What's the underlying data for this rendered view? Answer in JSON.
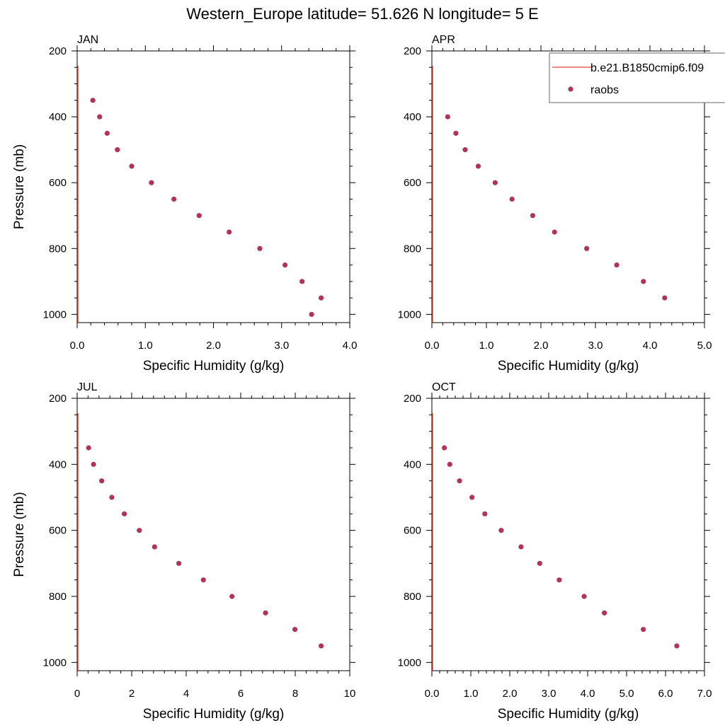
{
  "title": "Western_Europe  latitude= 51.626 N longitude= 5 E",
  "colors": {
    "model_line": "#e8433a",
    "obs_marker": "#b0335a",
    "axis": "#000000"
  },
  "legend": {
    "placement": "top-right",
    "entries": [
      {
        "label": "b.e21.B1850cmip6.f09",
        "style": "line"
      },
      {
        "label": "raobs",
        "style": "marker"
      }
    ]
  },
  "chart_data": [
    {
      "type": "scatter",
      "panel": "JAN",
      "xlabel": "Specific Humidity (g/kg)",
      "ylabel": "Pressure (mb)",
      "xlim": [
        0,
        4.0
      ],
      "ylim": [
        1025,
        200
      ],
      "xticks": [
        "0.0",
        "1.0",
        "2.0",
        "3.0",
        "4.0"
      ],
      "xtick_values": [
        0,
        1,
        2,
        3,
        4
      ],
      "yticks": [
        "200",
        "400",
        "600",
        "800",
        "1000"
      ],
      "ytick_values": [
        200,
        400,
        600,
        800,
        1000
      ],
      "model_line_x": 0.0,
      "series": [
        {
          "name": "raobs",
          "x": [
            0.23,
            0.33,
            0.44,
            0.59,
            0.8,
            1.09,
            1.42,
            1.79,
            2.23,
            2.68,
            3.05,
            3.3,
            3.58,
            3.44
          ],
          "y": [
            350,
            400,
            450,
            500,
            550,
            600,
            650,
            700,
            750,
            800,
            850,
            900,
            950,
            1000
          ]
        }
      ]
    },
    {
      "type": "scatter",
      "panel": "APR",
      "xlabel": "Specific Humidity (g/kg)",
      "ylabel": "",
      "xlim": [
        0,
        5.0
      ],
      "ylim": [
        1025,
        200
      ],
      "xticks": [
        "0.0",
        "1.0",
        "2.0",
        "3.0",
        "4.0",
        "5.0"
      ],
      "xtick_values": [
        0,
        1,
        2,
        3,
        4,
        5
      ],
      "yticks": [
        "200",
        "400",
        "600",
        "800",
        "1000"
      ],
      "ytick_values": [
        200,
        400,
        600,
        800,
        1000
      ],
      "model_line_x": 0.0,
      "series": [
        {
          "name": "raobs",
          "x": [
            0.29,
            0.44,
            0.61,
            0.85,
            1.16,
            1.47,
            1.85,
            2.25,
            2.84,
            3.39,
            3.88,
            4.27
          ],
          "y": [
            400,
            450,
            500,
            550,
            600,
            650,
            700,
            750,
            800,
            850,
            900,
            950
          ]
        }
      ]
    },
    {
      "type": "scatter",
      "panel": "JUL",
      "xlabel": "Specific Humidity (g/kg)",
      "ylabel": "Pressure (mb)",
      "xlim": [
        0,
        10
      ],
      "ylim": [
        1025,
        200
      ],
      "xticks": [
        "0",
        "2",
        "4",
        "6",
        "8",
        "10"
      ],
      "xtick_values": [
        0,
        2,
        4,
        6,
        8,
        10
      ],
      "yticks": [
        "200",
        "400",
        "600",
        "800",
        "1000"
      ],
      "ytick_values": [
        200,
        400,
        600,
        800,
        1000
      ],
      "model_line_x": 0.0,
      "series": [
        {
          "name": "raobs",
          "x": [
            0.42,
            0.6,
            0.9,
            1.27,
            1.73,
            2.28,
            2.84,
            3.73,
            4.63,
            5.68,
            6.91,
            7.99,
            8.95
          ],
          "y": [
            350,
            400,
            450,
            500,
            550,
            600,
            650,
            700,
            750,
            800,
            850,
            900,
            950
          ]
        }
      ]
    },
    {
      "type": "scatter",
      "panel": "OCT",
      "xlabel": "Specific Humidity (g/kg)",
      "ylabel": "",
      "xlim": [
        0,
        7.0
      ],
      "ylim": [
        1025,
        200
      ],
      "xticks": [
        "0.0",
        "1.0",
        "2.0",
        "3.0",
        "4.0",
        "5.0",
        "6.0",
        "7.0"
      ],
      "xtick_values": [
        0,
        1,
        2,
        3,
        4,
        5,
        6,
        7
      ],
      "yticks": [
        "200",
        "400",
        "600",
        "800",
        "1000"
      ],
      "ytick_values": [
        200,
        400,
        600,
        800,
        1000
      ],
      "model_line_x": 0.0,
      "series": [
        {
          "name": "raobs",
          "x": [
            0.32,
            0.46,
            0.71,
            1.03,
            1.36,
            1.78,
            2.29,
            2.77,
            3.27,
            3.91,
            4.43,
            5.43,
            6.29
          ],
          "y": [
            350,
            400,
            450,
            500,
            550,
            600,
            650,
            700,
            750,
            800,
            850,
            900,
            950
          ]
        }
      ]
    }
  ]
}
